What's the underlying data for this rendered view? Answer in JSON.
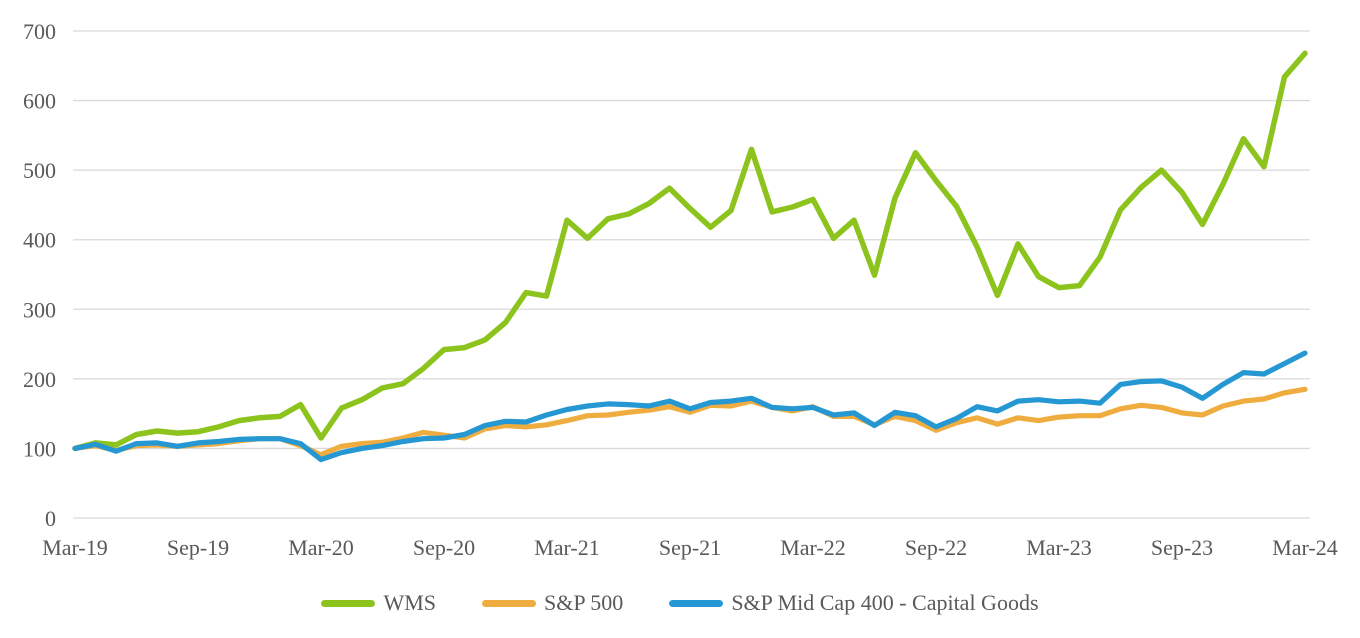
{
  "chart_data": {
    "type": "line",
    "title": "",
    "xlabel": "",
    "ylabel": "",
    "ylim": [
      0,
      700
    ],
    "y_ticks": [
      0,
      100,
      200,
      300,
      400,
      500,
      600,
      700
    ],
    "grid": "horizontal",
    "gridline_color": "#D9D9D9",
    "axis_text_color": "#595959",
    "legend_position": "bottom",
    "x_tick_labels": [
      "Mar-19",
      "Sep-19",
      "Mar-20",
      "Sep-20",
      "Mar-21",
      "Sep-21",
      "Mar-22",
      "Sep-22",
      "Mar-23",
      "Sep-23",
      "Mar-24"
    ],
    "x_months": [
      "Mar-19",
      "Apr-19",
      "May-19",
      "Jun-19",
      "Jul-19",
      "Aug-19",
      "Sep-19",
      "Oct-19",
      "Nov-19",
      "Dec-19",
      "Jan-20",
      "Feb-20",
      "Mar-20",
      "Apr-20",
      "May-20",
      "Jun-20",
      "Jul-20",
      "Aug-20",
      "Sep-20",
      "Oct-20",
      "Nov-20",
      "Dec-20",
      "Jan-21",
      "Feb-21",
      "Mar-21",
      "Apr-21",
      "May-21",
      "Jun-21",
      "Jul-21",
      "Aug-21",
      "Sep-21",
      "Oct-21",
      "Nov-21",
      "Dec-21",
      "Jan-22",
      "Feb-22",
      "Mar-22",
      "Apr-22",
      "May-22",
      "Jun-22",
      "Jul-22",
      "Aug-22",
      "Sep-22",
      "Oct-22",
      "Nov-22",
      "Dec-22",
      "Jan-23",
      "Feb-23",
      "Mar-23",
      "Apr-23",
      "May-23",
      "Jun-23",
      "Jul-23",
      "Aug-23",
      "Sep-23",
      "Oct-23",
      "Nov-23",
      "Dec-23",
      "Jan-24",
      "Feb-24",
      "Mar-24"
    ],
    "series": [
      {
        "name": "WMS",
        "color": "#8CC41D",
        "stroke_width": 5.5,
        "values": [
          100,
          108,
          105,
          120,
          125,
          122,
          124,
          131,
          140,
          144,
          146,
          163,
          115,
          158,
          170,
          187,
          193,
          215,
          242,
          245,
          256,
          281,
          324,
          319,
          428,
          402,
          430,
          437,
          452,
          474,
          445,
          418,
          442,
          530,
          440,
          447,
          458,
          402,
          428,
          349,
          460,
          525,
          485,
          448,
          390,
          320,
          394,
          347,
          331,
          334,
          375,
          443,
          475,
          500,
          468,
          422,
          480,
          545,
          505,
          634,
          668
        ]
      },
      {
        "name": "S&P 500",
        "color": "#EFAD40",
        "stroke_width": 5.2,
        "values": [
          100,
          104,
          97,
          104,
          105,
          103,
          105,
          107,
          111,
          114,
          114,
          104,
          91,
          103,
          107,
          109,
          115,
          123,
          119,
          115,
          128,
          133,
          131,
          134,
          140,
          147,
          148,
          152,
          155,
          160,
          152,
          162,
          161,
          168,
          159,
          154,
          160,
          146,
          146,
          134,
          146,
          140,
          126,
          137,
          144,
          135,
          144,
          140,
          145,
          147,
          147,
          157,
          162,
          159,
          151,
          148,
          161,
          168,
          171,
          180,
          185
        ]
      },
      {
        "name": "S&P Mid Cap 400 - Capital Goods",
        "color": "#2598D4",
        "stroke_width": 5.2,
        "values": [
          100,
          106,
          96,
          107,
          108,
          103,
          108,
          110,
          113,
          114,
          114,
          107,
          84,
          94,
          100,
          104,
          110,
          114,
          115,
          120,
          133,
          139,
          138,
          148,
          156,
          161,
          164,
          163,
          161,
          168,
          157,
          166,
          168,
          172,
          159,
          157,
          159,
          148,
          151,
          133,
          152,
          147,
          131,
          143,
          160,
          154,
          168,
          170,
          167,
          168,
          165,
          192,
          196,
          197,
          188,
          172,
          192,
          209,
          207,
          222,
          237
        ]
      }
    ]
  }
}
